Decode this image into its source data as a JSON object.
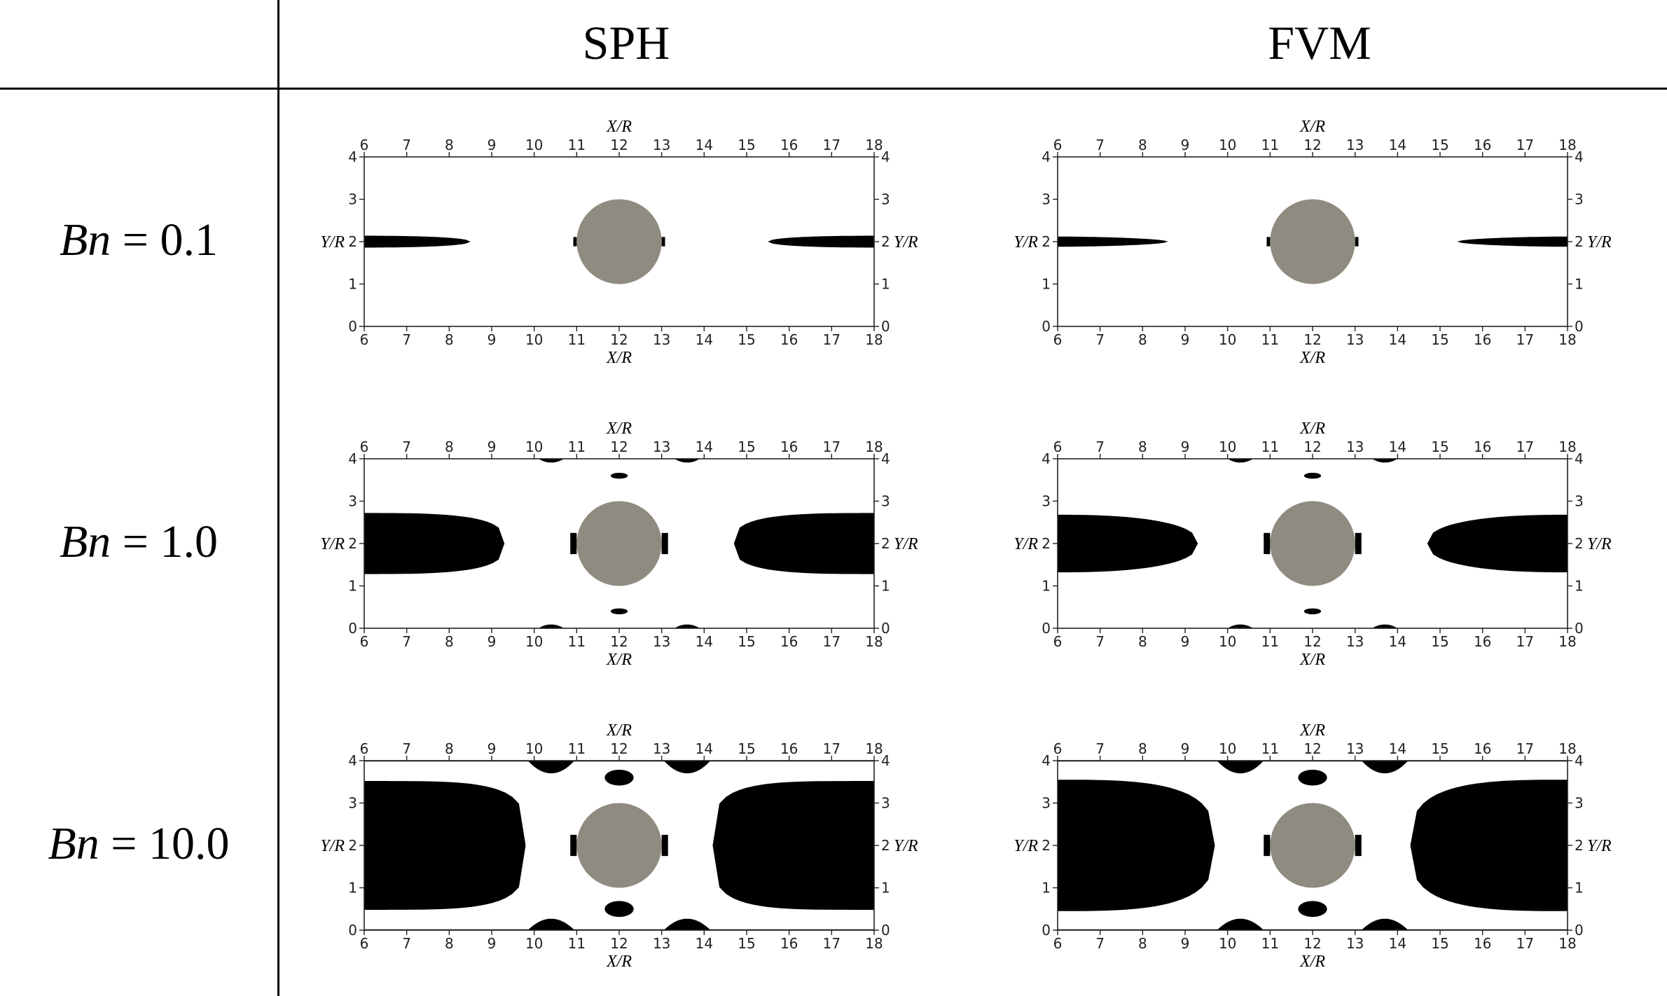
{
  "columns": [
    "SPH",
    "FVM"
  ],
  "rows": [
    {
      "lhs": "Bn",
      "op": " = ",
      "value": "0.1"
    },
    {
      "lhs": "Bn",
      "op": " = ",
      "value": "1.0"
    },
    {
      "lhs": "Bn",
      "op": " = ",
      "value": "10.0"
    }
  ],
  "axis": {
    "x_title": "X/R",
    "y_title": "Y/R",
    "x_ticks": [
      "6",
      "7",
      "8",
      "9",
      "10",
      "11",
      "12",
      "13",
      "14",
      "15",
      "16",
      "17",
      "18"
    ],
    "y_ticks": [
      "0",
      "1",
      "2",
      "3",
      "4"
    ],
    "xlim": [
      6,
      18
    ],
    "ylim": [
      0,
      4
    ]
  },
  "colors": {
    "unyielded_region": "#000000",
    "cylinder": "#8f8b80",
    "frame": "#222222"
  },
  "cylinder": {
    "cx": 12,
    "cy": 2,
    "r": 1
  }
}
